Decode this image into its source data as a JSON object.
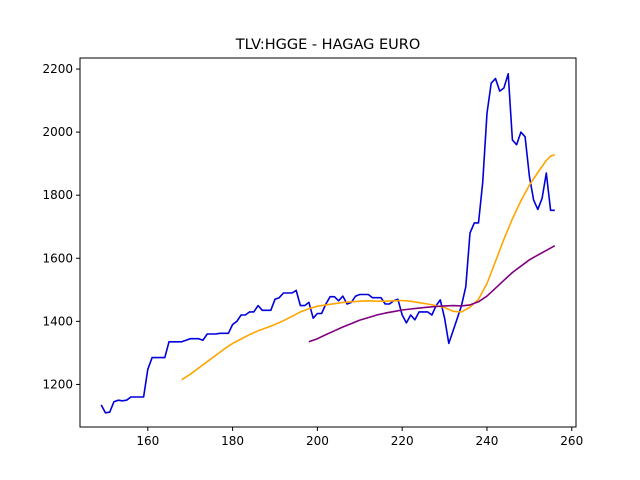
{
  "chart_data": {
    "type": "line",
    "title": "TLV:HGGE - HAGAG EURO",
    "xlabel": "",
    "ylabel": "",
    "xlim": [
      144,
      261
    ],
    "ylim": [
      1065,
      2235
    ],
    "xticks": [
      160,
      180,
      200,
      220,
      240,
      260
    ],
    "yticks": [
      1200,
      1400,
      1600,
      1800,
      2000,
      2200
    ],
    "grid": false,
    "legend": "none",
    "series": [
      {
        "color": "#0000dd",
        "x": [
          149,
          150,
          151,
          152,
          153,
          154,
          155,
          156,
          157,
          158,
          159,
          160,
          161,
          162,
          163,
          164,
          165,
          166,
          167,
          168,
          169,
          170,
          171,
          172,
          173,
          174,
          175,
          176,
          177,
          178,
          179,
          180,
          181,
          182,
          183,
          184,
          185,
          186,
          187,
          188,
          189,
          190,
          191,
          192,
          193,
          194,
          195,
          196,
          197,
          198,
          199,
          200,
          201,
          202,
          203,
          204,
          205,
          206,
          207,
          208,
          209,
          210,
          211,
          212,
          213,
          214,
          215,
          216,
          217,
          218,
          219,
          220,
          221,
          222,
          223,
          224,
          225,
          226,
          227,
          228,
          229,
          230,
          231,
          232,
          233,
          234,
          235,
          236,
          237,
          238,
          239,
          240,
          241,
          242,
          243,
          244,
          245,
          246,
          247,
          248,
          249,
          250,
          251,
          252,
          253,
          254,
          255,
          256
        ],
        "y": [
          1135,
          1110,
          1112,
          1145,
          1150,
          1148,
          1150,
          1160,
          1160,
          1160,
          1160,
          1248,
          1285,
          1285,
          1285,
          1285,
          1335,
          1335,
          1335,
          1335,
          1340,
          1345,
          1345,
          1345,
          1340,
          1360,
          1360,
          1360,
          1362,
          1362,
          1362,
          1390,
          1400,
          1420,
          1420,
          1430,
          1430,
          1450,
          1435,
          1435,
          1435,
          1470,
          1475,
          1490,
          1490,
          1490,
          1498,
          1450,
          1450,
          1460,
          1410,
          1425,
          1425,
          1455,
          1478,
          1478,
          1465,
          1480,
          1455,
          1460,
          1480,
          1485,
          1485,
          1485,
          1475,
          1475,
          1475,
          1455,
          1455,
          1465,
          1470,
          1420,
          1395,
          1420,
          1405,
          1430,
          1430,
          1430,
          1420,
          1450,
          1468,
          1410,
          1330,
          1370,
          1410,
          1450,
          1510,
          1680,
          1712,
          1712,
          1840,
          2060,
          2155,
          2170,
          2130,
          2140,
          2185,
          1975,
          1960,
          2000,
          1985,
          1860,
          1785,
          1755,
          1790,
          1870,
          1752,
          1752
        ]
      },
      {
        "color": "#ffa500",
        "x": [
          168,
          170,
          172,
          174,
          176,
          178,
          180,
          182,
          184,
          186,
          188,
          190,
          192,
          194,
          196,
          198,
          200,
          202,
          204,
          206,
          208,
          210,
          212,
          214,
          216,
          218,
          220,
          222,
          224,
          226,
          228,
          230,
          232,
          234,
          236,
          238,
          240,
          242,
          244,
          246,
          248,
          250,
          252,
          254,
          255,
          256
        ],
        "y": [
          1215,
          1232,
          1252,
          1272,
          1292,
          1312,
          1330,
          1344,
          1358,
          1370,
          1380,
          1390,
          1402,
          1416,
          1430,
          1440,
          1448,
          1452,
          1456,
          1460,
          1462,
          1464,
          1465,
          1464,
          1464,
          1465,
          1466,
          1464,
          1459,
          1455,
          1450,
          1444,
          1432,
          1430,
          1445,
          1470,
          1520,
          1590,
          1660,
          1725,
          1782,
          1832,
          1872,
          1910,
          1924,
          1928
        ]
      },
      {
        "color": "#800080",
        "x": [
          198,
          200,
          202,
          204,
          206,
          208,
          210,
          212,
          214,
          216,
          218,
          220,
          222,
          224,
          226,
          228,
          230,
          232,
          234,
          236,
          238,
          240,
          242,
          244,
          246,
          248,
          250,
          252,
          254,
          256
        ],
        "y": [
          1335,
          1345,
          1358,
          1370,
          1382,
          1393,
          1404,
          1412,
          1420,
          1426,
          1431,
          1436,
          1439,
          1442,
          1445,
          1447,
          1449,
          1450,
          1449,
          1452,
          1462,
          1480,
          1505,
          1530,
          1555,
          1575,
          1595,
          1610,
          1625,
          1640
        ]
      }
    ]
  }
}
